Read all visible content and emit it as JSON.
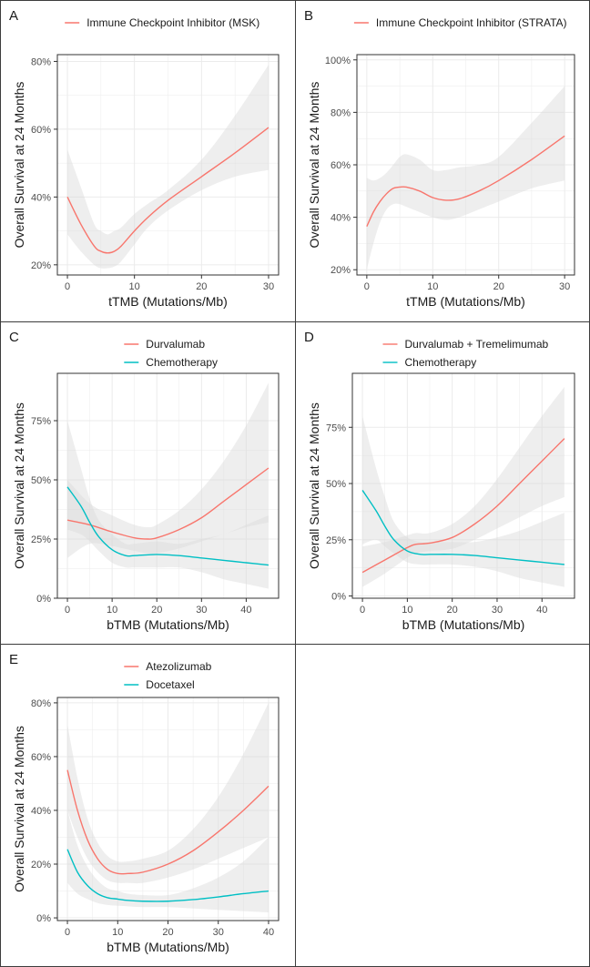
{
  "colors": {
    "series_red": "#F8766D",
    "series_teal": "#00BFC4",
    "band": "#d9d9d9",
    "grid": "#ebebeb"
  },
  "chart_data": [
    {
      "id": "A",
      "panel_label": "A",
      "type": "line",
      "title": "",
      "xlabel": "tTMB (Mutations/Mb)",
      "ylabel": "Overall Survival at 24 Months",
      "xlim": [
        -1.5,
        31.5
      ],
      "ylim": [
        0.17,
        0.82
      ],
      "xticks": [
        0,
        10,
        20,
        30
      ],
      "xtick_labels": [
        "0",
        "10",
        "20",
        "30"
      ],
      "yticks": [
        0.2,
        0.4,
        0.6,
        0.8
      ],
      "ytick_labels": [
        "20%",
        "40%",
        "60%",
        "80%"
      ],
      "legend": "top",
      "series": [
        {
          "name": "Immune Checkpoint Inhibitor (MSK)",
          "color": "#F8766D",
          "x": [
            0,
            2,
            4,
            5,
            6,
            7,
            8,
            10,
            12,
            15,
            20,
            25,
            30
          ],
          "y": [
            0.4,
            0.32,
            0.255,
            0.24,
            0.235,
            0.24,
            0.255,
            0.3,
            0.34,
            0.39,
            0.46,
            0.53,
            0.605
          ],
          "lower": [
            0.29,
            0.24,
            0.2,
            0.19,
            0.19,
            0.195,
            0.21,
            0.26,
            0.31,
            0.36,
            0.42,
            0.46,
            0.48
          ],
          "upper": [
            0.54,
            0.43,
            0.32,
            0.3,
            0.29,
            0.3,
            0.31,
            0.35,
            0.38,
            0.42,
            0.51,
            0.64,
            0.79
          ]
        }
      ]
    },
    {
      "id": "B",
      "panel_label": "B",
      "type": "line",
      "title": "",
      "xlabel": "tTMB (Mutations/Mb)",
      "ylabel": "Overall Survival at 24 Months",
      "xlim": [
        -1.5,
        31.5
      ],
      "ylim": [
        0.18,
        1.02
      ],
      "xticks": [
        0,
        10,
        20,
        30
      ],
      "xtick_labels": [
        "0",
        "10",
        "20",
        "30"
      ],
      "yticks": [
        0.2,
        0.4,
        0.6,
        0.8,
        1.0
      ],
      "ytick_labels": [
        "20%",
        "40%",
        "60%",
        "80%",
        "100%"
      ],
      "legend": "top",
      "series": [
        {
          "name": "Immune Checkpoint Inhibitor (STRATA)",
          "color": "#F8766D",
          "x": [
            0,
            1,
            2,
            3,
            4,
            5,
            6,
            8,
            10,
            12,
            14,
            17,
            20,
            25,
            30
          ],
          "y": [
            0.365,
            0.42,
            0.46,
            0.49,
            0.51,
            0.515,
            0.515,
            0.5,
            0.475,
            0.465,
            0.47,
            0.5,
            0.54,
            0.62,
            0.71
          ],
          "lower": [
            0.2,
            0.3,
            0.38,
            0.43,
            0.45,
            0.45,
            0.44,
            0.42,
            0.4,
            0.39,
            0.4,
            0.43,
            0.46,
            0.51,
            0.54
          ],
          "upper": [
            0.55,
            0.54,
            0.55,
            0.57,
            0.6,
            0.63,
            0.64,
            0.62,
            0.58,
            0.58,
            0.59,
            0.6,
            0.63,
            0.76,
            0.9
          ]
        }
      ]
    },
    {
      "id": "C",
      "panel_label": "C",
      "type": "line",
      "title": "",
      "xlabel": "bTMB (Mutations/Mb)",
      "ylabel": "Overall Survival at 24 Months",
      "xlim": [
        -2.25,
        47.25
      ],
      "ylim": [
        0,
        0.95
      ],
      "xticks": [
        0,
        10,
        20,
        30,
        40
      ],
      "xtick_labels": [
        "0",
        "10",
        "20",
        "30",
        "40"
      ],
      "yticks": [
        0,
        0.25,
        0.5,
        0.75
      ],
      "ytick_labels": [
        "0%",
        "25%",
        "50%",
        "75%"
      ],
      "legend": "top",
      "series": [
        {
          "name": "Durvalumab",
          "color": "#F8766D",
          "x": [
            0,
            5,
            10,
            15,
            18,
            20,
            25,
            30,
            35,
            40,
            45
          ],
          "y": [
            0.33,
            0.31,
            0.28,
            0.255,
            0.25,
            0.255,
            0.29,
            0.34,
            0.41,
            0.48,
            0.55
          ],
          "lower": [
            0.17,
            0.23,
            0.22,
            0.2,
            0.19,
            0.19,
            0.21,
            0.24,
            0.27,
            0.3,
            0.32
          ],
          "upper": [
            0.5,
            0.4,
            0.35,
            0.31,
            0.3,
            0.31,
            0.37,
            0.46,
            0.58,
            0.73,
            0.91
          ]
        },
        {
          "name": "Chemotherapy",
          "color": "#00BFC4",
          "x": [
            0,
            3,
            5,
            7,
            10,
            13,
            15,
            20,
            25,
            30,
            35,
            40,
            45
          ],
          "y": [
            0.47,
            0.39,
            0.32,
            0.26,
            0.205,
            0.18,
            0.18,
            0.185,
            0.18,
            0.17,
            0.16,
            0.15,
            0.14
          ],
          "lower": [
            0.29,
            0.27,
            0.24,
            0.2,
            0.15,
            0.13,
            0.13,
            0.13,
            0.13,
            0.11,
            0.08,
            0.06,
            0.04
          ],
          "upper": [
            0.75,
            0.55,
            0.42,
            0.33,
            0.27,
            0.23,
            0.23,
            0.24,
            0.23,
            0.25,
            0.27,
            0.31,
            0.35
          ]
        }
      ]
    },
    {
      "id": "D",
      "panel_label": "D",
      "type": "line",
      "title": "",
      "xlabel": "bTMB (Mutations/Mb)",
      "ylabel": "Overall Survival at 24 Months",
      "xlim": [
        -2.25,
        47.25
      ],
      "ylim": [
        -0.01,
        0.99
      ],
      "xticks": [
        0,
        10,
        20,
        30,
        40
      ],
      "xtick_labels": [
        "0",
        "10",
        "20",
        "30",
        "40"
      ],
      "yticks": [
        0,
        0.25,
        0.5,
        0.75
      ],
      "ytick_labels": [
        "0%",
        "25%",
        "50%",
        "75%"
      ],
      "legend": "top",
      "series": [
        {
          "name": "Durvalumab + Tremelimumab",
          "color": "#F8766D",
          "x": [
            0,
            5,
            10,
            12,
            15,
            20,
            25,
            30,
            35,
            40,
            45
          ],
          "y": [
            0.105,
            0.16,
            0.215,
            0.23,
            0.235,
            0.26,
            0.32,
            0.4,
            0.5,
            0.6,
            0.7
          ],
          "lower": [
            0.04,
            0.1,
            0.17,
            0.19,
            0.2,
            0.21,
            0.25,
            0.3,
            0.35,
            0.4,
            0.44
          ],
          "upper": [
            0.22,
            0.24,
            0.27,
            0.28,
            0.28,
            0.32,
            0.4,
            0.52,
            0.66,
            0.8,
            0.93
          ]
        },
        {
          "name": "Chemotherapy",
          "color": "#00BFC4",
          "x": [
            0,
            3,
            5,
            7,
            10,
            13,
            15,
            20,
            25,
            30,
            35,
            40,
            45
          ],
          "y": [
            0.47,
            0.38,
            0.31,
            0.25,
            0.2,
            0.185,
            0.185,
            0.185,
            0.18,
            0.17,
            0.16,
            0.15,
            0.14
          ],
          "lower": [
            0.23,
            0.25,
            0.22,
            0.19,
            0.15,
            0.14,
            0.14,
            0.14,
            0.13,
            0.11,
            0.08,
            0.06,
            0.04
          ],
          "upper": [
            0.8,
            0.57,
            0.44,
            0.33,
            0.26,
            0.24,
            0.24,
            0.24,
            0.24,
            0.26,
            0.29,
            0.33,
            0.37
          ]
        }
      ]
    },
    {
      "id": "E",
      "panel_label": "E",
      "type": "line",
      "title": "",
      "xlabel": "bTMB (Mutations/Mb)",
      "ylabel": "Overall Survival at 24 Months",
      "xlim": [
        -2,
        42
      ],
      "ylim": [
        -0.01,
        0.82
      ],
      "xticks": [
        0,
        10,
        20,
        30,
        40
      ],
      "xtick_labels": [
        "0",
        "10",
        "20",
        "30",
        "40"
      ],
      "yticks": [
        0,
        0.2,
        0.4,
        0.6,
        0.8
      ],
      "ytick_labels": [
        "0%",
        "20%",
        "40%",
        "60%",
        "80%"
      ],
      "legend": "top",
      "series": [
        {
          "name": "Atezolizumab",
          "color": "#F8766D",
          "x": [
            0,
            2,
            4,
            6,
            8,
            10,
            12,
            15,
            20,
            25,
            30,
            35,
            40
          ],
          "y": [
            0.55,
            0.4,
            0.29,
            0.22,
            0.18,
            0.165,
            0.165,
            0.17,
            0.2,
            0.25,
            0.32,
            0.4,
            0.49
          ],
          "lower": [
            0.4,
            0.3,
            0.22,
            0.17,
            0.14,
            0.13,
            0.13,
            0.13,
            0.15,
            0.18,
            0.22,
            0.26,
            0.3
          ],
          "upper": [
            0.72,
            0.52,
            0.37,
            0.28,
            0.23,
            0.21,
            0.21,
            0.22,
            0.25,
            0.33,
            0.45,
            0.61,
            0.8
          ]
        },
        {
          "name": "Docetaxel",
          "color": "#00BFC4",
          "x": [
            0,
            2,
            4,
            6,
            8,
            10,
            12,
            15,
            20,
            25,
            30,
            35,
            40
          ],
          "y": [
            0.255,
            0.17,
            0.12,
            0.09,
            0.075,
            0.07,
            0.065,
            0.062,
            0.062,
            0.068,
            0.078,
            0.09,
            0.1
          ],
          "lower": [
            0.13,
            0.09,
            0.07,
            0.055,
            0.048,
            0.045,
            0.043,
            0.04,
            0.04,
            0.035,
            0.03,
            0.025,
            0.02
          ],
          "upper": [
            0.4,
            0.27,
            0.19,
            0.14,
            0.11,
            0.1,
            0.09,
            0.085,
            0.085,
            0.11,
            0.15,
            0.21,
            0.3
          ]
        }
      ]
    }
  ]
}
